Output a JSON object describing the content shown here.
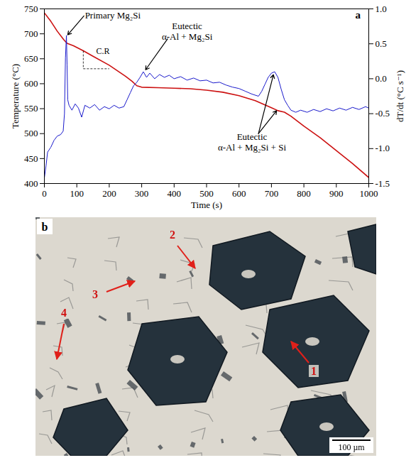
{
  "chart_data": {
    "type": "line",
    "x_label": "Time (s)",
    "y_label": "Temperature (°C)",
    "y2_label": "dT/dt (°C s⁻¹)",
    "xlim": [
      0,
      1000
    ],
    "xticks": [
      0,
      100,
      200,
      300,
      400,
      500,
      600,
      700,
      800,
      900,
      1000
    ],
    "ylim": [
      400,
      750
    ],
    "yticks": [
      400,
      450,
      500,
      550,
      600,
      650,
      700,
      750
    ],
    "y2lim": [
      -1.5,
      1.0
    ],
    "y2ticks": [
      -1.5,
      {
        "value": -1,
        "label": "-1.0"
      },
      -0.5,
      {
        "value": 0,
        "label": "0.0"
      },
      0.5,
      {
        "value": 1,
        "label": "1.0"
      }
    ],
    "grid": false,
    "series": [
      {
        "color": "#cc1111",
        "axis": "y",
        "x": [
          0,
          20,
          40,
          60,
          70,
          90,
          120,
          150,
          200,
          250,
          270,
          285,
          300,
          350,
          400,
          450,
          500,
          550,
          600,
          650,
          700,
          720,
          740,
          760,
          800,
          850,
          900,
          950,
          1000
        ],
        "values": [
          742,
          725,
          705,
          688,
          681,
          676,
          666,
          655,
          637,
          615,
          605,
          596,
          593,
          592,
          591,
          590,
          587,
          583,
          576,
          566,
          552,
          546,
          543,
          535,
          515,
          492,
          466,
          440,
          412
        ]
      },
      {
        "color": "#1a1acc",
        "axis": "y2",
        "x": [
          0,
          5,
          10,
          20,
          30,
          40,
          50,
          58,
          62,
          65,
          68,
          70,
          72,
          76,
          85,
          95,
          105,
          115,
          125,
          140,
          155,
          170,
          185,
          200,
          215,
          230,
          245,
          255,
          265,
          275,
          285,
          295,
          305,
          315,
          325,
          340,
          355,
          370,
          385,
          400,
          420,
          440,
          460,
          480,
          500,
          520,
          540,
          560,
          580,
          600,
          620,
          640,
          660,
          670,
          680,
          690,
          700,
          710,
          720,
          730,
          740,
          750,
          760,
          775,
          790,
          810,
          830,
          850,
          870,
          890,
          910,
          930,
          950,
          970,
          990,
          1000
        ],
        "values": [
          -1.42,
          -1.25,
          -1.05,
          -0.98,
          -0.88,
          -0.82,
          -0.8,
          -0.75,
          -0.5,
          0.3,
          0.62,
          0.2,
          -0.3,
          -0.38,
          -0.45,
          -0.36,
          -0.42,
          -0.55,
          -0.38,
          -0.42,
          -0.37,
          -0.45,
          -0.4,
          -0.43,
          -0.38,
          -0.42,
          -0.4,
          -0.3,
          -0.2,
          -0.1,
          -0.05,
          0.02,
          0.1,
          0.02,
          0.08,
          0.0,
          0.06,
          0.02,
          0.05,
          0.0,
          0.03,
          -0.02,
          0.01,
          -0.03,
          -0.02,
          -0.06,
          -0.05,
          -0.09,
          -0.12,
          -0.14,
          -0.18,
          -0.22,
          -0.25,
          -0.18,
          -0.08,
          0.02,
          0.08,
          0.1,
          0.02,
          -0.15,
          -0.3,
          -0.38,
          -0.45,
          -0.48,
          -0.45,
          -0.48,
          -0.44,
          -0.47,
          -0.43,
          -0.46,
          -0.42,
          -0.45,
          -0.41,
          -0.44,
          -0.4,
          -0.42
        ]
      }
    ],
    "annotations": [
      {
        "text": "a"
      },
      {
        "text": "Primary Mg₂Si"
      },
      {
        "text": "Eutectic\nα-Al + Mg₂Si"
      },
      {
        "text": "Eutectic\nα-Al + Mg₂Si + Si"
      },
      {
        "text": "C.R"
      }
    ]
  },
  "micrograph": {
    "panel_label": "b",
    "labels": [
      "1",
      "2",
      "3",
      "4"
    ],
    "scale_bar": "100 µm"
  }
}
